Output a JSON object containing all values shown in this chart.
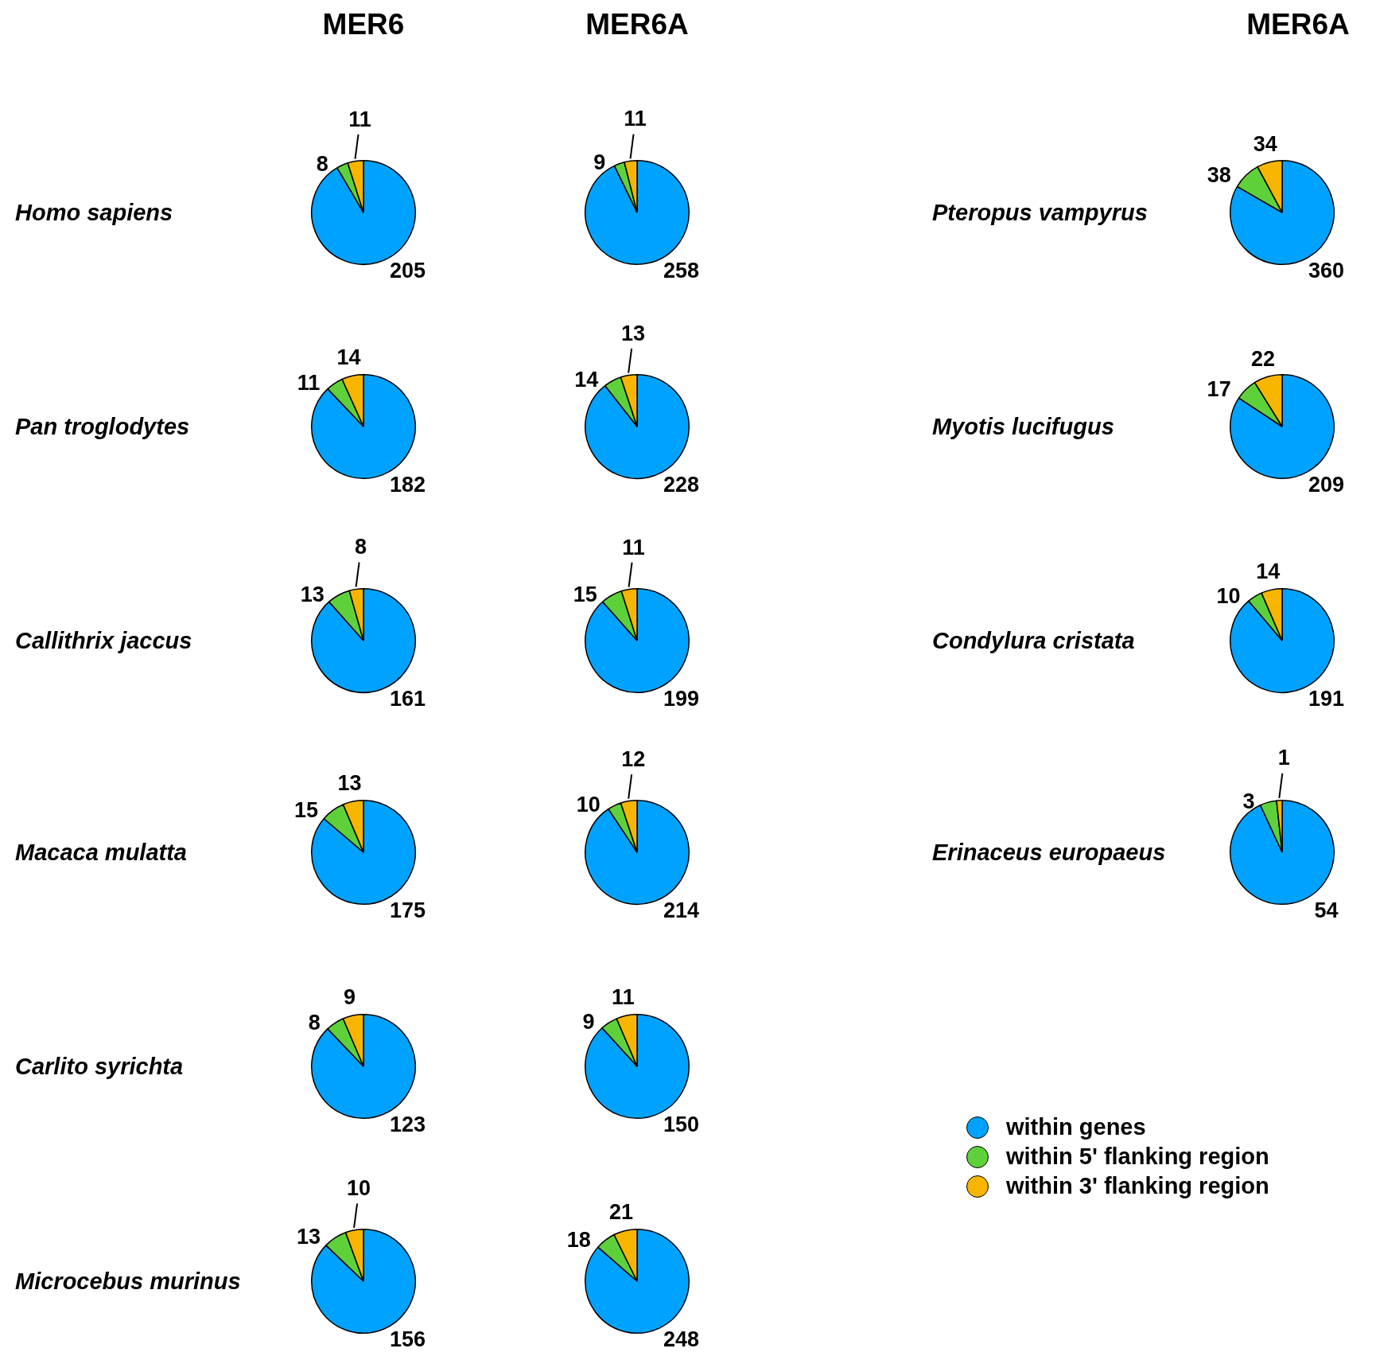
{
  "chart_data": [
    {
      "type": "pie",
      "title": "MER6",
      "ylabel": "Homo sapiens",
      "categories": [
        null,
        null,
        null
      ],
      "values": [
        205,
        8,
        11
      ],
      "colors": [
        "#00a2ff",
        "#5ed13a",
        "#f7b500"
      ],
      "data_labels": true
    },
    {
      "type": "pie",
      "title": "MER6A",
      "categories": [
        null,
        null,
        null
      ],
      "values": [
        258,
        9,
        11
      ],
      "colors": [
        "#00a2ff",
        "#5ed13a",
        "#f7b500"
      ],
      "data_labels": true
    },
    {
      "type": "pie",
      "title": "MER6A",
      "ylabel": "Pteropus vampyrus",
      "categories": [
        null,
        null,
        null
      ],
      "values": [
        360,
        38,
        34
      ],
      "colors": [
        "#00a2ff",
        "#5ed13a",
        "#f7b500"
      ],
      "data_labels": true
    },
    {
      "type": "pie",
      "ylabel": "Pan troglodytes",
      "categories": [
        null,
        null,
        null
      ],
      "values": [
        182,
        11,
        14
      ],
      "colors": [
        "#00a2ff",
        "#5ed13a",
        "#f7b500"
      ],
      "data_labels": true
    },
    {
      "type": "pie",
      "categories": [
        null,
        null,
        null
      ],
      "values": [
        228,
        14,
        13
      ],
      "colors": [
        "#00a2ff",
        "#5ed13a",
        "#f7b500"
      ],
      "data_labels": true
    },
    {
      "type": "pie",
      "ylabel": "Myotis lucifugus",
      "categories": [
        null,
        null,
        null
      ],
      "values": [
        209,
        17,
        22
      ],
      "colors": [
        "#00a2ff",
        "#5ed13a",
        "#f7b500"
      ],
      "data_labels": true
    },
    {
      "type": "pie",
      "ylabel": "Callithrix jaccus",
      "categories": [
        null,
        null,
        null
      ],
      "values": [
        161,
        13,
        8
      ],
      "colors": [
        "#00a2ff",
        "#5ed13a",
        "#f7b500"
      ],
      "data_labels": true
    },
    {
      "type": "pie",
      "categories": [
        null,
        null,
        null
      ],
      "values": [
        199,
        15,
        11
      ],
      "colors": [
        "#00a2ff",
        "#5ed13a",
        "#f7b500"
      ],
      "data_labels": true
    },
    {
      "type": "pie",
      "ylabel": "Condylura cristata",
      "categories": [
        null,
        null,
        null
      ],
      "values": [
        191,
        10,
        14
      ],
      "colors": [
        "#00a2ff",
        "#5ed13a",
        "#f7b500"
      ],
      "data_labels": true
    },
    {
      "type": "pie",
      "ylabel": "Macaca mulatta",
      "categories": [
        null,
        null,
        null
      ],
      "values": [
        175,
        15,
        13
      ],
      "colors": [
        "#00a2ff",
        "#5ed13a",
        "#f7b500"
      ],
      "data_labels": true
    },
    {
      "type": "pie",
      "categories": [
        null,
        null,
        null
      ],
      "values": [
        214,
        10,
        12
      ],
      "colors": [
        "#00a2ff",
        "#5ed13a",
        "#f7b500"
      ],
      "data_labels": true
    },
    {
      "type": "pie",
      "ylabel": "Erinaceus europaeus",
      "categories": [
        "within genes",
        "within 5' flanking region",
        "within 3' flanking region"
      ],
      "values": [
        54,
        3,
        1
      ],
      "colors": [
        "#00a2ff",
        "#5ed13a",
        "#f7b500"
      ],
      "data_labels": true,
      "legend": "bottom"
    },
    {
      "type": "pie",
      "ylabel": "Carlito syrichta",
      "categories": [
        null,
        null,
        null
      ],
      "values": [
        123,
        8,
        9
      ],
      "colors": [
        "#00a2ff",
        "#5ed13a",
        "#f7b500"
      ],
      "data_labels": true
    },
    {
      "type": "pie",
      "categories": [
        null,
        null,
        null
      ],
      "values": [
        150,
        9,
        11
      ],
      "colors": [
        "#00a2ff",
        "#5ed13a",
        "#f7b500"
      ],
      "data_labels": true
    },
    {
      "type": "pie",
      "ylabel": "Microcebus murinus",
      "categories": [
        null,
        null,
        null
      ],
      "values": [
        156,
        13,
        10
      ],
      "colors": [
        "#00a2ff",
        "#5ed13a",
        "#f7b500"
      ],
      "data_labels": true
    },
    {
      "type": "pie",
      "categories": [
        null,
        null,
        null
      ],
      "values": [
        248,
        18,
        21
      ],
      "colors": [
        "#00a2ff",
        "#5ed13a",
        "#f7b500"
      ],
      "data_labels": true
    }
  ]
}
